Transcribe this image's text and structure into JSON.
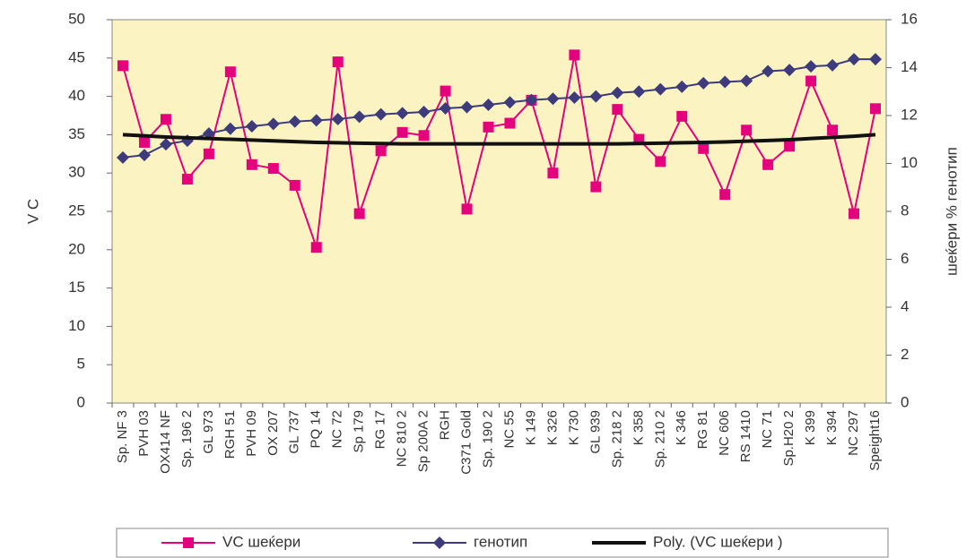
{
  "chart_data": {
    "type": "line",
    "y_label": "V C",
    "y2_label": "шеќери % генотип",
    "categories": [
      "Sp. NF 3",
      "PVH 03",
      "OX414 NF",
      "Sp. 196 2",
      "GL 973",
      "RGH 51",
      "PVH 09",
      "OX 207",
      "GL 737",
      "PQ 14",
      "NC 72",
      "Sp 179",
      "RG 17",
      "NC 810 2",
      "Sp 200A 2",
      "RGH",
      "C371 Gold",
      "Sp. 190 2",
      "NC 55",
      "K 149",
      "K 326",
      "K 730",
      "GL 939",
      "Sp. 218 2",
      "K 358",
      "Sp. 210 2",
      "K 346",
      "RG 81",
      "NC 606",
      "RS 1410",
      "NC 71",
      "Sp.H20 2",
      "K 399",
      "K 394",
      "NC 297",
      "Speight16"
    ],
    "series": [
      {
        "name": "VC шеќери",
        "color": "#e5007d",
        "marker": "square",
        "values": [
          44.0,
          34.0,
          37.0,
          29.2,
          32.5,
          43.2,
          31.1,
          30.6,
          28.4,
          20.3,
          44.5,
          24.7,
          32.9,
          35.3,
          34.9,
          40.7,
          25.3,
          36.0,
          36.5,
          39.5,
          30.0,
          45.4,
          28.2,
          38.3,
          34.4,
          31.5,
          37.4,
          33.2,
          27.2,
          35.6,
          31.1,
          33.5,
          42.0,
          35.6,
          24.7,
          38.4
        ]
      },
      {
        "name": "генотип",
        "color": "#3d3b7c",
        "marker": "diamond",
        "axis": "y2",
        "values": [
          10.25,
          10.35,
          10.8,
          10.95,
          11.25,
          11.45,
          11.55,
          11.65,
          11.75,
          11.8,
          11.85,
          11.95,
          12.05,
          12.1,
          12.15,
          12.3,
          12.35,
          12.45,
          12.55,
          12.65,
          12.7,
          12.75,
          12.8,
          12.95,
          13.0,
          13.1,
          13.2,
          13.35,
          13.4,
          13.45,
          13.85,
          13.9,
          14.05,
          14.1,
          14.35,
          14.35
        ]
      },
      {
        "name": "Poly. (VC шеќери )",
        "color": "#111111",
        "marker": "none",
        "values": [
          35.0,
          34.85,
          34.7,
          34.6,
          34.5,
          34.4,
          34.3,
          34.2,
          34.1,
          34.0,
          33.95,
          33.9,
          33.85,
          33.8,
          33.8,
          33.8,
          33.8,
          33.8,
          33.8,
          33.8,
          33.8,
          33.8,
          33.8,
          33.8,
          33.85,
          33.9,
          33.95,
          34.0,
          34.05,
          34.15,
          34.25,
          34.35,
          34.5,
          34.65,
          34.8,
          35.0
        ]
      }
    ],
    "ylim": [
      0,
      50
    ],
    "yticks": [
      0,
      5,
      10,
      15,
      20,
      25,
      30,
      35,
      40,
      45,
      50
    ],
    "y2lim": [
      0,
      16
    ],
    "y2ticks": [
      0,
      2,
      4,
      6,
      8,
      10,
      12,
      14,
      16
    ],
    "legend": "bottom",
    "plot_background": "#fbf4c2"
  }
}
